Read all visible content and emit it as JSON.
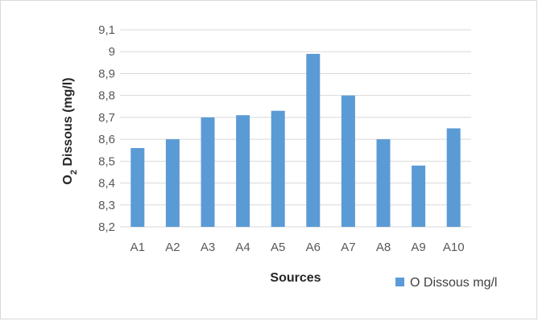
{
  "chart_data": {
    "type": "bar",
    "categories": [
      "A1",
      "A2",
      "A3",
      "A4",
      "A5",
      "A6",
      "A7",
      "A8",
      "A9",
      "A10"
    ],
    "series": [
      {
        "name": "O Dissous mg/l",
        "values": [
          8.56,
          8.6,
          8.7,
          8.71,
          8.73,
          8.99,
          8.8,
          8.6,
          8.48,
          8.65
        ]
      }
    ],
    "ylim": [
      8.2,
      9.1
    ],
    "yticks": [
      "8,2",
      "8,3",
      "8,4",
      "8,5",
      "8,6",
      "8,7",
      "8,8",
      "8,9",
      "9",
      "9,1"
    ],
    "xlabel": "Sources",
    "ylabel": {
      "prefix": "O",
      "subscript": "2",
      "suffix": " Dissous (mg/l)"
    },
    "legend_position": "bottom-right",
    "grid": true,
    "bar_color": "#5b9bd5",
    "grid_color": "#d9d9d9"
  }
}
